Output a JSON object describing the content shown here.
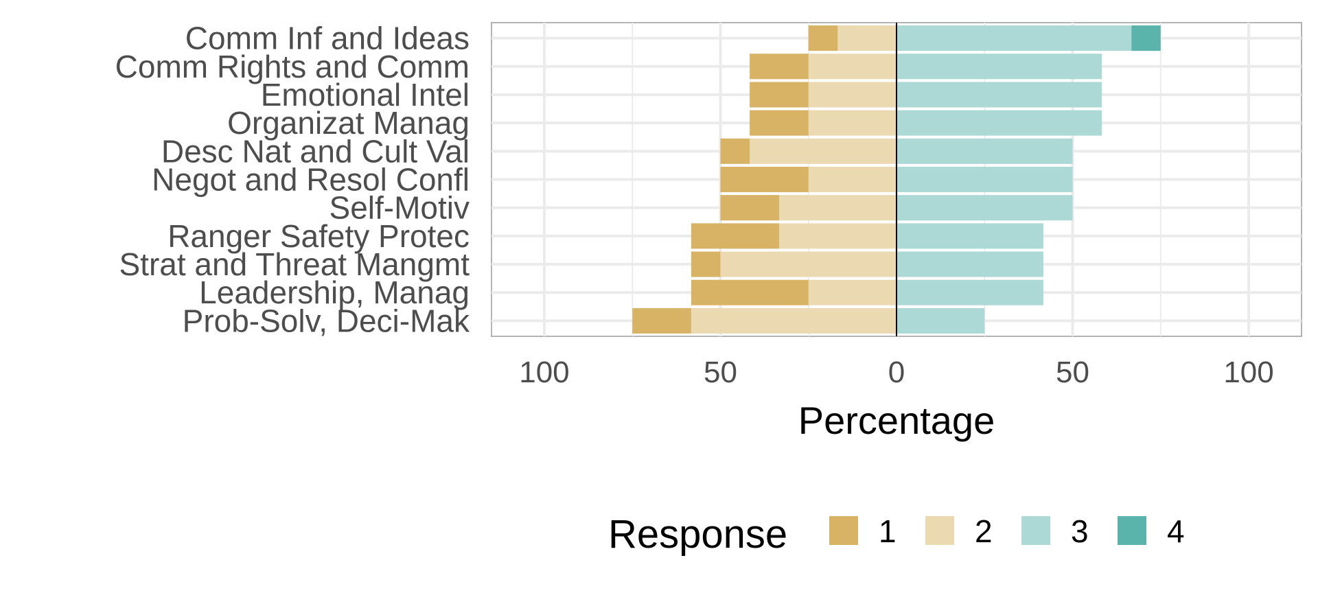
{
  "chart_data": {
    "type": "bar",
    "orientation": "horizontal",
    "stacking": "diverging",
    "categories": [
      "Comm Inf and Ideas",
      "Comm Rights and Comm",
      "Emotional Intel",
      "Organizat Manag",
      "Desc Nat and Cult Val",
      "Negot and Resol Confl",
      "Self-Motiv",
      "Ranger Safety Protec",
      "Strat and Threat Mangmt",
      "Leadership, Manag",
      "Prob-Solv, Deci-Mak"
    ],
    "series": [
      {
        "name": "1",
        "color": "#d8b365",
        "side": "negative",
        "values": [
          8.3,
          16.7,
          16.7,
          16.7,
          8.3,
          25,
          16.7,
          25,
          8.3,
          33.3,
          16.7
        ]
      },
      {
        "name": "2",
        "color": "#ebd9b2",
        "side": "negative",
        "values": [
          16.7,
          25,
          25,
          25,
          41.7,
          25,
          33.3,
          33.3,
          50,
          25,
          58.3
        ]
      },
      {
        "name": "3",
        "color": "#acd9d5",
        "side": "positive",
        "values": [
          66.7,
          58.3,
          58.3,
          58.3,
          50,
          50,
          50,
          41.7,
          41.7,
          41.7,
          25
        ]
      },
      {
        "name": "4",
        "color": "#5ab4ac",
        "side": "positive",
        "values": [
          8.3,
          0,
          0,
          0,
          0,
          0,
          0,
          0,
          0,
          0,
          0
        ]
      }
    ],
    "xlabel": "Percentage",
    "ylabel": "",
    "xlim": [
      -115,
      115
    ],
    "x_ticks": [
      -100,
      -50,
      0,
      50,
      100
    ],
    "x_tick_labels": [
      "100",
      "50",
      "0",
      "50",
      "100"
    ],
    "grid": true,
    "legend": {
      "title": "Response",
      "position": "bottom"
    }
  }
}
